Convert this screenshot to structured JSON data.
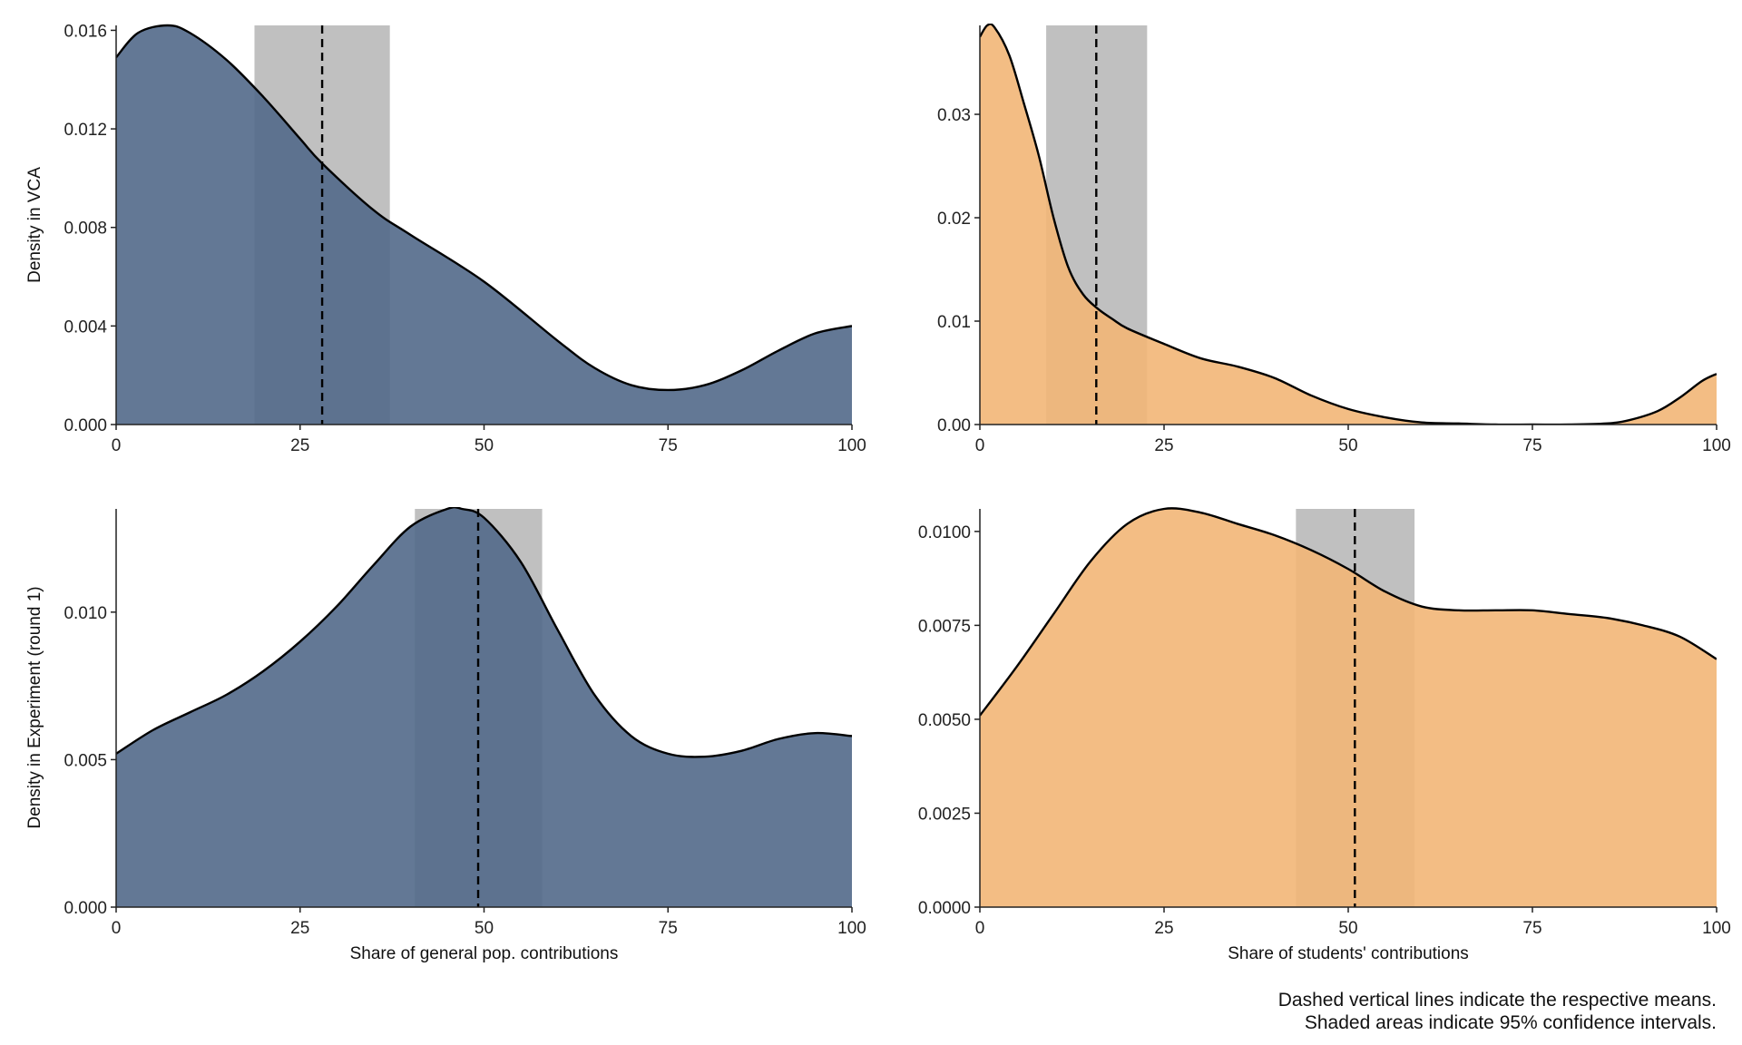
{
  "chart_data": [
    {
      "type": "area",
      "panel": "top-left",
      "xlabel": "",
      "ylabel": "Density in VCA",
      "xlim": [
        0,
        100
      ],
      "ylim": [
        0,
        0.0162
      ],
      "x_ticks": [
        0,
        25,
        50,
        75,
        100
      ],
      "x_tick_labels": [
        "0",
        "25",
        "50",
        "75",
        "100"
      ],
      "y_ticks": [
        0,
        0.004,
        0.008,
        0.012,
        0.016
      ],
      "y_tick_labels": [
        "0.000",
        "0.004",
        "0.008",
        "0.012",
        "0.016"
      ],
      "fill_color": "#52698a",
      "mean": 28,
      "ci": [
        18.8,
        37.2
      ],
      "x": [
        0,
        3,
        7,
        10,
        15,
        20,
        25,
        28,
        35,
        40,
        50,
        60,
        65,
        70,
        75,
        80,
        85,
        90,
        95,
        100
      ],
      "y": [
        0.0149,
        0.0159,
        0.0162,
        0.0159,
        0.0148,
        0.0133,
        0.0116,
        0.0106,
        0.0087,
        0.0077,
        0.0058,
        0.0034,
        0.0023,
        0.0016,
        0.0014,
        0.0016,
        0.0022,
        0.003,
        0.0037,
        0.004
      ]
    },
    {
      "type": "area",
      "panel": "top-right",
      "xlabel": "",
      "ylabel": "",
      "xlim": [
        0,
        100
      ],
      "ylim": [
        0,
        0.0386
      ],
      "x_ticks": [
        0,
        25,
        50,
        75,
        100
      ],
      "x_tick_labels": [
        "0",
        "25",
        "50",
        "75",
        "100"
      ],
      "y_ticks": [
        0,
        0.01,
        0.02,
        0.03
      ],
      "y_tick_labels": [
        "0.00",
        "0.01",
        "0.02",
        "0.03"
      ],
      "fill_color": "#f2b677",
      "mean": 15.8,
      "ci": [
        9,
        22.7
      ],
      "x": [
        0,
        1,
        2,
        4,
        6,
        8,
        10,
        12,
        14,
        16,
        18,
        20,
        25,
        30,
        35,
        40,
        45,
        50,
        55,
        60,
        65,
        70,
        75,
        80,
        85,
        88,
        92,
        95,
        98,
        100
      ],
      "y": [
        0.0375,
        0.0386,
        0.0384,
        0.0357,
        0.031,
        0.026,
        0.02,
        0.0152,
        0.0126,
        0.0112,
        0.0102,
        0.0093,
        0.0078,
        0.0064,
        0.0056,
        0.0045,
        0.0028,
        0.0015,
        0.0007,
        0.0002,
        0.0001,
        0.0,
        0.0,
        0.0,
        0.0001,
        0.0004,
        0.0013,
        0.0026,
        0.0042,
        0.0049
      ]
    },
    {
      "type": "area",
      "panel": "bottom-left",
      "xlabel": "Share of general pop. contributions",
      "ylabel": "Density in Experiment (round 1)",
      "xlim": [
        0,
        100
      ],
      "ylim": [
        0,
        0.0135
      ],
      "x_ticks": [
        0,
        25,
        50,
        75,
        100
      ],
      "x_tick_labels": [
        "0",
        "25",
        "50",
        "75",
        "100"
      ],
      "y_ticks": [
        0,
        0.005,
        0.01
      ],
      "y_tick_labels": [
        "0.000",
        "0.005",
        "0.010"
      ],
      "fill_color": "#52698a",
      "mean": 49.2,
      "ci": [
        40.6,
        57.9
      ],
      "x": [
        0,
        5,
        10,
        15,
        20,
        25,
        30,
        35,
        40,
        45,
        47,
        50,
        55,
        60,
        65,
        70,
        75,
        80,
        85,
        90,
        95,
        100
      ],
      "y": [
        0.0052,
        0.006,
        0.0066,
        0.0072,
        0.008,
        0.009,
        0.0102,
        0.0116,
        0.0129,
        0.0135,
        0.0135,
        0.0132,
        0.0117,
        0.0094,
        0.0072,
        0.0058,
        0.0052,
        0.0051,
        0.0053,
        0.0057,
        0.0059,
        0.0058
      ]
    },
    {
      "type": "area",
      "panel": "bottom-right",
      "xlabel": "Share of students' contributions",
      "ylabel": "",
      "xlim": [
        0,
        100
      ],
      "ylim": [
        0,
        0.0106
      ],
      "x_ticks": [
        0,
        25,
        50,
        75,
        100
      ],
      "x_tick_labels": [
        "0",
        "25",
        "50",
        "75",
        "100"
      ],
      "y_ticks": [
        0,
        0.0025,
        0.005,
        0.0075,
        0.01
      ],
      "y_tick_labels": [
        "0.0000",
        "0.0025",
        "0.0050",
        "0.0075",
        "0.0100"
      ],
      "fill_color": "#f2b677",
      "mean": 50.9,
      "ci": [
        42.9,
        59
      ],
      "x": [
        0,
        5,
        10,
        15,
        20,
        25,
        30,
        35,
        40,
        45,
        50,
        55,
        60,
        65,
        70,
        75,
        80,
        85,
        90,
        95,
        100
      ],
      "y": [
        0.0051,
        0.0064,
        0.0078,
        0.0092,
        0.0102,
        0.0106,
        0.0105,
        0.0102,
        0.0099,
        0.0095,
        0.009,
        0.0084,
        0.008,
        0.0079,
        0.0079,
        0.0079,
        0.0078,
        0.0077,
        0.0075,
        0.0072,
        0.0066
      ]
    }
  ],
  "colors": {
    "ci_band": "#c0c0c0",
    "line": "#000000"
  },
  "caption": {
    "line1": "Dashed vertical lines indicate the respective means.",
    "line2": "Shaded areas indicate 95% confidence intervals."
  }
}
